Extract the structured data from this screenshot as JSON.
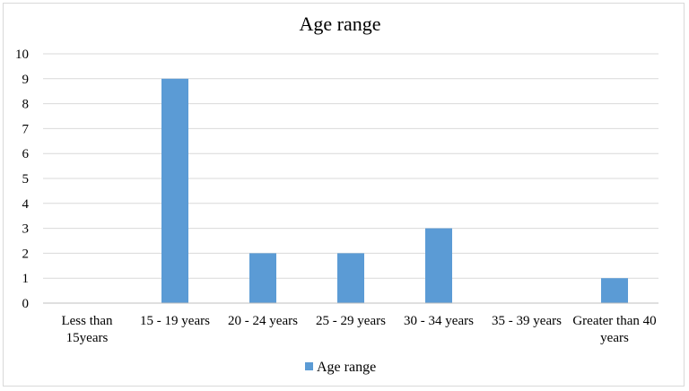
{
  "chart_data": {
    "type": "bar",
    "title": "Age range",
    "xlabel": "",
    "ylabel": "",
    "ylim": [
      0,
      10
    ],
    "yticks": [
      "0",
      "1",
      "2",
      "3",
      "4",
      "5",
      "6",
      "7",
      "8",
      "9",
      "10"
    ],
    "categories": [
      [
        "Less than",
        "15years"
      ],
      [
        "15 - 19 years"
      ],
      [
        "20 - 24 years"
      ],
      [
        "25 - 29  years"
      ],
      [
        "30 - 34  years"
      ],
      [
        "35 - 39 years"
      ],
      [
        "Greater than 40",
        "years"
      ]
    ],
    "series": [
      {
        "name": "Age range",
        "values": [
          0,
          9,
          2,
          2,
          3,
          0,
          1
        ]
      }
    ],
    "grid": true,
    "legend_position": "bottom",
    "colors": {
      "bar": "#5b9bd5",
      "grid": "#d9d9d9",
      "axis": "#bfbfbf",
      "frame": "#d9d9d9"
    }
  }
}
